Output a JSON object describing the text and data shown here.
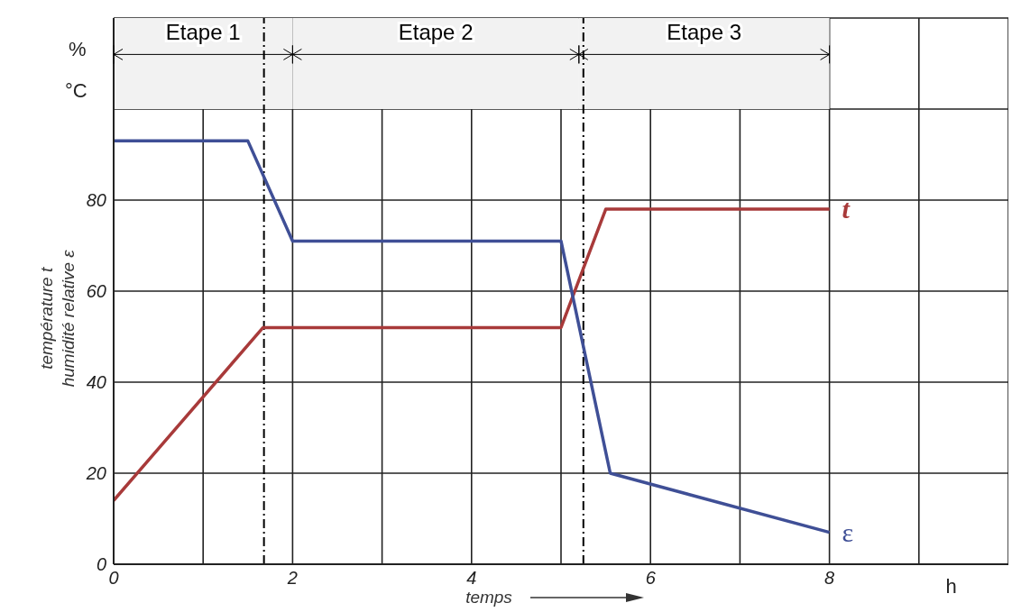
{
  "chart_data": {
    "type": "line",
    "xlabel": "temps",
    "ylabel": "température t\nhumidité relative ε",
    "xlim": [
      0,
      10
    ],
    "ylim": [
      0,
      120
    ],
    "xticks": [
      0,
      {
        "value": 1,
        "label": null
      },
      2,
      {
        "value": 3,
        "label": null
      },
      4,
      {
        "value": 5,
        "label": null
      },
      6,
      {
        "value": 7,
        "label": null
      },
      8,
      {
        "value": 9,
        "label": null
      },
      {
        "value": 10,
        "label": null
      }
    ],
    "yticks": [
      0,
      20,
      40,
      60,
      80,
      {
        "value": 100,
        "label": null
      },
      {
        "value": 120,
        "label": null
      }
    ],
    "grid": true,
    "legend": false,
    "marker": "none",
    "line_style": "solid",
    "series": [
      {
        "name": "t",
        "color": "#a83a3a",
        "x": [
          0,
          1.67,
          5,
          5.5,
          8
        ],
        "values": [
          14,
          52,
          52,
          78,
          78
        ]
      },
      {
        "name": "ε",
        "color": "#3f4f96",
        "x": [
          0,
          1.5,
          2,
          5,
          5.55,
          8
        ],
        "values": [
          93,
          93,
          71,
          71,
          20,
          7
        ]
      }
    ],
    "ref_lines": [
      {
        "axis": "x",
        "value": 1.68,
        "line_style": "dashed",
        "color": "#000000"
      },
      {
        "axis": "x",
        "value": 5.25,
        "line_style": "dashed",
        "color": "#000000"
      }
    ],
    "bands": [
      {
        "axis": "x",
        "from": 0,
        "to": 2,
        "label": "Etape 1",
        "color": "#f2f2f2"
      },
      {
        "axis": "x",
        "from": 2,
        "to": 5.2,
        "label": "Etape 2",
        "color": "#f2f2f2"
      },
      {
        "axis": "x",
        "from": 5.2,
        "to": 8,
        "label": "Etape 3",
        "color": "#f2f2f2"
      }
    ],
    "annotations": [
      "%",
      "°C",
      "h"
    ]
  }
}
